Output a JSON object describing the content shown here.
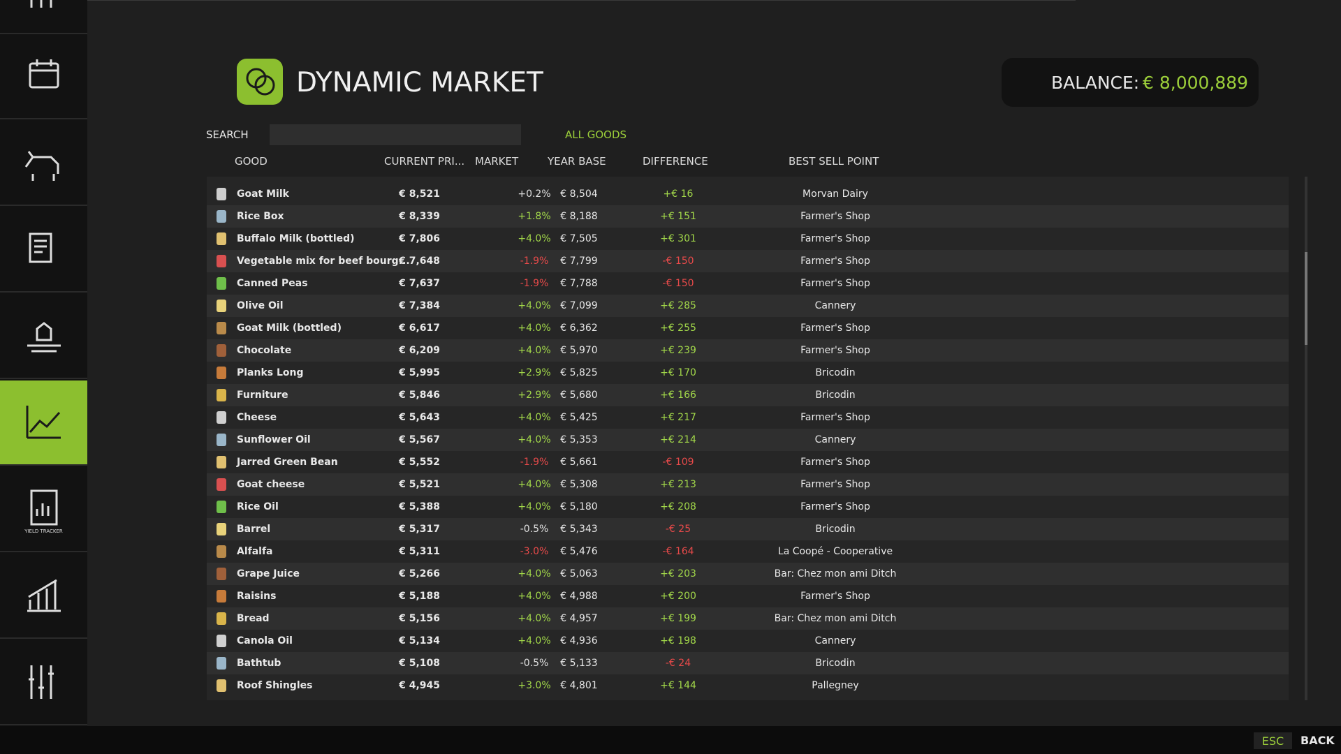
{
  "sidebar": {
    "yield_tracker_label": "YIELD TRACKER"
  },
  "header": {
    "title": "DYNAMIC MARKET",
    "balance_label": "BALANCE:",
    "balance_value": "€ 8,000,889"
  },
  "filters": {
    "search_label": "SEARCH",
    "category": "ALL GOODS"
  },
  "table": {
    "columns": [
      "GOOD",
      "CURRENT PRI...",
      "MARKET",
      "YEAR BASE",
      "DIFFERENCE",
      "BEST SELL POINT"
    ],
    "rows": [
      [
        "Goat Milk",
        "€ 8,521",
        "+0.2%",
        "€ 8,504",
        "+€ 16",
        "Morvan Dairy"
      ],
      [
        "Rice Box",
        "€ 8,339",
        "+1.8%",
        "€ 8,188",
        "+€ 151",
        "Farmer's Shop"
      ],
      [
        "Buffalo Milk (bottled)",
        "€ 7,806",
        "+4.0%",
        "€ 7,505",
        "+€ 301",
        "Farmer's Shop"
      ],
      [
        "Vegetable mix for beef bourg...",
        "€ 7,648",
        "-1.9%",
        "€ 7,799",
        "-€ 150",
        "Farmer's Shop"
      ],
      [
        "Canned Peas",
        "€ 7,637",
        "-1.9%",
        "€ 7,788",
        "-€ 150",
        "Farmer's Shop"
      ],
      [
        "Olive Oil",
        "€ 7,384",
        "+4.0%",
        "€ 7,099",
        "+€ 285",
        "Cannery"
      ],
      [
        "Goat Milk (bottled)",
        "€ 6,617",
        "+4.0%",
        "€ 6,362",
        "+€ 255",
        "Farmer's Shop"
      ],
      [
        "Chocolate",
        "€ 6,209",
        "+4.0%",
        "€ 5,970",
        "+€ 239",
        "Farmer's Shop"
      ],
      [
        "Planks Long",
        "€ 5,995",
        "+2.9%",
        "€ 5,825",
        "+€ 170",
        "Bricodin"
      ],
      [
        "Furniture",
        "€ 5,846",
        "+2.9%",
        "€ 5,680",
        "+€ 166",
        "Bricodin"
      ],
      [
        "Cheese",
        "€ 5,643",
        "+4.0%",
        "€ 5,425",
        "+€ 217",
        "Farmer's Shop"
      ],
      [
        "Sunflower Oil",
        "€ 5,567",
        "+4.0%",
        "€ 5,353",
        "+€ 214",
        "Cannery"
      ],
      [
        "Jarred Green Bean",
        "€ 5,552",
        "-1.9%",
        "€ 5,661",
        "-€ 109",
        "Farmer's Shop"
      ],
      [
        "Goat cheese",
        "€ 5,521",
        "+4.0%",
        "€ 5,308",
        "+€ 213",
        "Farmer's Shop"
      ],
      [
        "Rice Oil",
        "€ 5,388",
        "+4.0%",
        "€ 5,180",
        "+€ 208",
        "Farmer's Shop"
      ],
      [
        "Barrel",
        "€ 5,317",
        "-0.5%",
        "€ 5,343",
        "-€ 25",
        "Bricodin"
      ],
      [
        "Alfalfa",
        "€ 5,311",
        "-3.0%",
        "€ 5,476",
        "-€ 164",
        "La Coopé - Cooperative"
      ],
      [
        "Grape Juice",
        "€ 5,266",
        "+4.0%",
        "€ 5,063",
        "+€ 203",
        "Bar: Chez mon ami Ditch"
      ],
      [
        "Raisins",
        "€ 5,188",
        "+4.0%",
        "€ 4,988",
        "+€ 200",
        "Farmer's Shop"
      ],
      [
        "Bread",
        "€ 5,156",
        "+4.0%",
        "€ 4,957",
        "+€ 199",
        "Bar: Chez mon ami Ditch"
      ],
      [
        "Canola Oil",
        "€ 5,134",
        "+4.0%",
        "€ 4,936",
        "+€ 198",
        "Cannery"
      ],
      [
        "Bathtub",
        "€ 5,108",
        "-0.5%",
        "€ 5,133",
        "-€ 24",
        "Bricodin"
      ],
      [
        "Roof Shingles",
        "€ 4,945",
        "+3.0%",
        "€ 4,801",
        "+€ 144",
        "Pallegney"
      ]
    ]
  },
  "footer": {
    "key": "ESC",
    "action": "BACK"
  }
}
